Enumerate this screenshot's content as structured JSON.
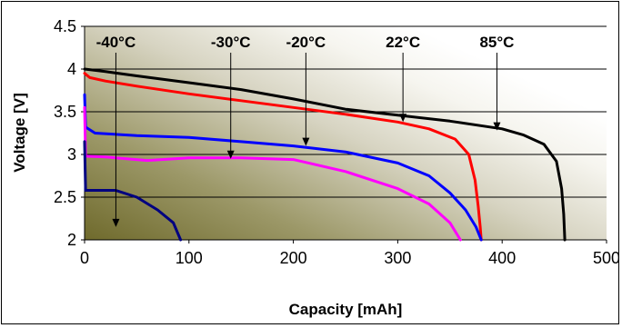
{
  "chart_data": {
    "type": "line",
    "title": "",
    "xlabel": "Capacity [mAh]",
    "ylabel": "Voltage [V]",
    "xlim": [
      0,
      500
    ],
    "ylim": [
      2,
      4.5
    ],
    "xticks": [
      "0",
      "100",
      "200",
      "300",
      "400",
      "500"
    ],
    "yticks": [
      "2",
      "2.5",
      "3",
      "3.5",
      "4",
      "4.5"
    ],
    "grid": "horizontal",
    "legend": "none",
    "series": [
      {
        "name": "85°C",
        "color": "#000000",
        "points": [
          [
            0,
            4.0
          ],
          [
            20,
            3.97
          ],
          [
            50,
            3.92
          ],
          [
            100,
            3.84
          ],
          [
            150,
            3.76
          ],
          [
            200,
            3.65
          ],
          [
            250,
            3.53
          ],
          [
            300,
            3.46
          ],
          [
            350,
            3.39
          ],
          [
            400,
            3.3
          ],
          [
            420,
            3.23
          ],
          [
            440,
            3.12
          ],
          [
            452,
            2.92
          ],
          [
            457,
            2.6
          ],
          [
            459,
            2.3
          ],
          [
            460,
            2.0
          ]
        ]
      },
      {
        "name": "22°C",
        "color": "#ff0000",
        "points": [
          [
            0,
            3.95
          ],
          [
            5,
            3.9
          ],
          [
            20,
            3.86
          ],
          [
            50,
            3.8
          ],
          [
            100,
            3.71
          ],
          [
            150,
            3.63
          ],
          [
            200,
            3.55
          ],
          [
            250,
            3.47
          ],
          [
            300,
            3.38
          ],
          [
            330,
            3.3
          ],
          [
            355,
            3.18
          ],
          [
            368,
            3.0
          ],
          [
            374,
            2.7
          ],
          [
            377,
            2.4
          ],
          [
            379,
            2.15
          ],
          [
            380,
            2.0
          ]
        ]
      },
      {
        "name": "-20°C",
        "color": "#0000ff",
        "points": [
          [
            0,
            3.7
          ],
          [
            1,
            3.32
          ],
          [
            10,
            3.25
          ],
          [
            50,
            3.22
          ],
          [
            100,
            3.2
          ],
          [
            150,
            3.15
          ],
          [
            200,
            3.1
          ],
          [
            250,
            3.03
          ],
          [
            300,
            2.9
          ],
          [
            330,
            2.75
          ],
          [
            350,
            2.55
          ],
          [
            365,
            2.35
          ],
          [
            375,
            2.15
          ],
          [
            380,
            2.0
          ]
        ]
      },
      {
        "name": "-30°C",
        "color": "#ff00ff",
        "points": [
          [
            0,
            3.55
          ],
          [
            1,
            2.98
          ],
          [
            20,
            2.97
          ],
          [
            60,
            2.93
          ],
          [
            100,
            2.96
          ],
          [
            150,
            2.96
          ],
          [
            200,
            2.94
          ],
          [
            250,
            2.8
          ],
          [
            300,
            2.6
          ],
          [
            330,
            2.42
          ],
          [
            350,
            2.2
          ],
          [
            360,
            2.0
          ]
        ]
      },
      {
        "name": "-40°C",
        "color": "#000080",
        "points": [
          [
            0,
            3.15
          ],
          [
            1,
            2.58
          ],
          [
            30,
            2.58
          ],
          [
            50,
            2.5
          ],
          [
            70,
            2.35
          ],
          [
            85,
            2.2
          ],
          [
            92,
            2.0
          ]
        ]
      }
    ],
    "annotations": [
      {
        "text": "-40°C",
        "arrow_to": [
          30,
          2.15
        ]
      },
      {
        "text": "-30°C",
        "arrow_to": [
          140,
          2.95
        ]
      },
      {
        "text": "-20°C",
        "arrow_to": [
          212,
          3.1
        ]
      },
      {
        "text": "22°C",
        "arrow_to": [
          305,
          3.38
        ]
      },
      {
        "text": "85°C",
        "arrow_to": [
          395,
          3.28
        ]
      }
    ]
  }
}
